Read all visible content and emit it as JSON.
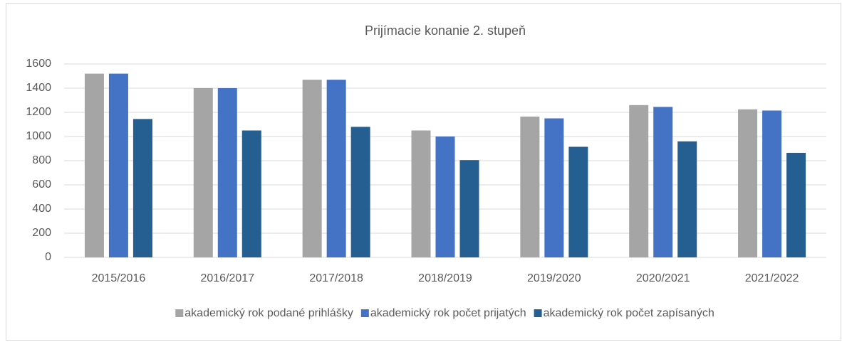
{
  "chart_data": {
    "type": "bar",
    "title": "Prijímacie konanie 2. stupeň",
    "categories": [
      "2015/2016",
      "2016/2017",
      "2017/2018",
      "2018/2019",
      "2019/2020",
      "2020/2021",
      "2021/2022"
    ],
    "series": [
      {
        "name": "akademický rok podané prihlášky",
        "color": "#a5a5a5",
        "values": [
          1520,
          1400,
          1470,
          1050,
          1165,
          1260,
          1225
        ]
      },
      {
        "name": "akademický rok počet prijatých",
        "color": "#4472c4",
        "values": [
          1520,
          1400,
          1470,
          1000,
          1150,
          1245,
          1215
        ]
      },
      {
        "name": "akademický rok počet zapísaných",
        "color": "#255e91",
        "values": [
          1145,
          1050,
          1080,
          805,
          915,
          960,
          865
        ]
      }
    ],
    "ylim": [
      0,
      1600
    ],
    "yticks": [
      0,
      200,
      400,
      600,
      800,
      1000,
      1200,
      1400,
      1600
    ],
    "grid": true,
    "legend": "bottom"
  }
}
